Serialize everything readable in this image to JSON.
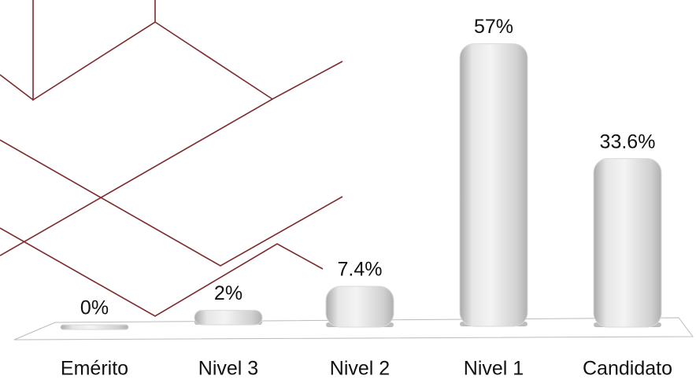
{
  "chart_data": {
    "type": "bar",
    "categories": [
      "Emérito",
      "Nivel 3",
      "Nivel 2",
      "Nivel 1",
      "Candidato"
    ],
    "values": [
      0,
      2,
      7.4,
      57,
      33.6
    ],
    "value_labels": [
      "0%",
      "2%",
      "7.4%",
      "57%",
      "33.6%"
    ],
    "color": "#d9d9d9"
  }
}
